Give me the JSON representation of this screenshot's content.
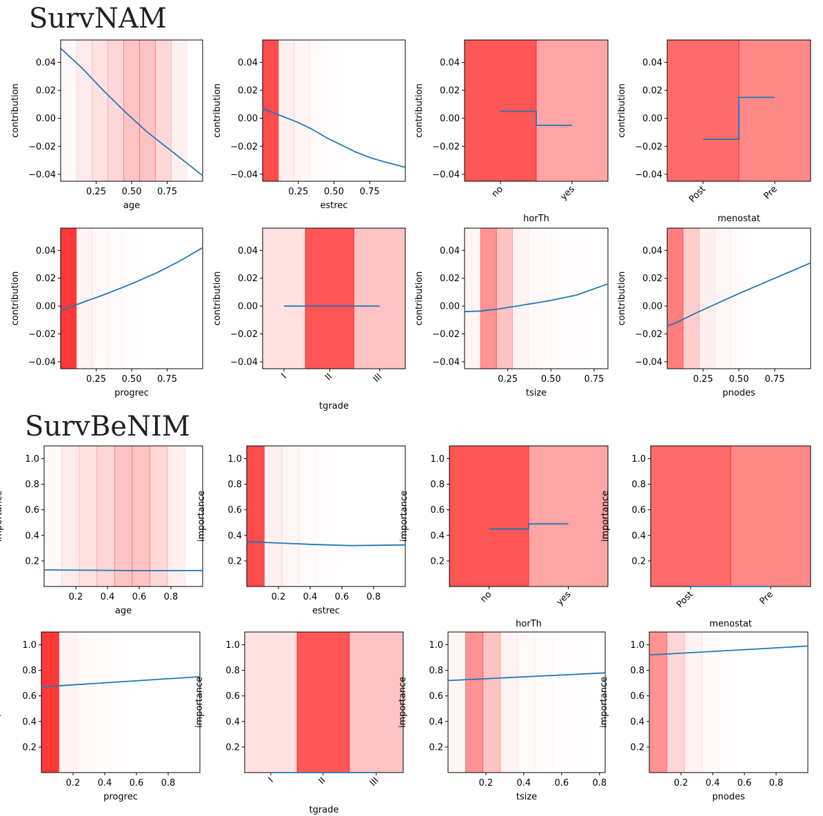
{
  "sections": [
    {
      "title": "SurvNAM",
      "ylabel": "contribution",
      "ylim": [
        -0.045,
        0.056
      ],
      "yticks": [
        -0.04,
        -0.02,
        0.0,
        0.02,
        0.04
      ],
      "ytick_labels": [
        "−0.04",
        "−0.02",
        "0.00",
        "0.02",
        "0.04"
      ],
      "subplots": [
        {
          "feature": "age",
          "kind": "numeric",
          "xlim": [
            0,
            1
          ],
          "xticks": [
            0.25,
            0.5,
            0.75
          ],
          "xtick_labels": [
            "0.25",
            "0.50",
            "0.75"
          ],
          "bands": [
            0.03,
            0.1,
            0.15,
            0.2,
            0.3,
            0.3,
            0.2,
            0.08,
            0.0
          ],
          "line_x": [
            0,
            0.15,
            0.3,
            0.45,
            0.6,
            0.75,
            0.9,
            1.0
          ],
          "line_y": [
            0.05,
            0.036,
            0.02,
            0.005,
            -0.009,
            -0.021,
            -0.033,
            -0.041
          ]
        },
        {
          "feature": "estrec",
          "kind": "numeric",
          "xlim": [
            0,
            1
          ],
          "xticks": [
            0.25,
            0.5,
            0.75
          ],
          "xtick_labels": [
            "0.25",
            "0.50",
            "0.75"
          ],
          "bands": [
            0.9,
            0.08,
            0.05,
            0.02,
            0.01,
            0.0,
            0.0,
            0.0,
            0.0
          ],
          "line_x": [
            0,
            0.1,
            0.2,
            0.25,
            0.35,
            0.45,
            0.55,
            0.65,
            0.75,
            0.85,
            1.0
          ],
          "line_y": [
            0.007,
            0.003,
            -0.001,
            -0.003,
            -0.008,
            -0.014,
            -0.019,
            -0.024,
            -0.028,
            -0.031,
            -0.035
          ]
        },
        {
          "feature": "horTh",
          "kind": "categorical",
          "categories": [
            "no",
            "yes"
          ],
          "widths": [
            0.5,
            0.5
          ],
          "bands": [
            0.85,
            0.45
          ],
          "values": [
            0.005,
            -0.005
          ]
        },
        {
          "feature": "menostat",
          "kind": "categorical",
          "categories": [
            "Post",
            "Pre"
          ],
          "widths": [
            0.5,
            0.5
          ],
          "bands": [
            0.75,
            0.6
          ],
          "values": [
            -0.015,
            0.015
          ]
        },
        {
          "feature": "progrec",
          "kind": "numeric",
          "xlim": [
            0,
            1
          ],
          "xticks": [
            0.25,
            0.5,
            0.75
          ],
          "xtick_labels": [
            "0.25",
            "0.50",
            "0.75"
          ],
          "bands": [
            1.0,
            0.06,
            0.03,
            0.02,
            0.01,
            0.0,
            0.0,
            0.0,
            0.0
          ],
          "line_x": [
            0,
            0.11,
            0.3,
            0.5,
            0.68,
            0.85,
            1.0
          ],
          "line_y": [
            -0.003,
            0.001,
            0.008,
            0.016,
            0.024,
            0.033,
            0.042
          ]
        },
        {
          "feature": "tgrade",
          "kind": "categorical",
          "categories": [
            "I",
            "II",
            "III"
          ],
          "widths": [
            0.3,
            0.34,
            0.36
          ],
          "bands": [
            0.15,
            0.85,
            0.3
          ],
          "values": [
            0.0,
            0.0,
            0.0
          ]
        },
        {
          "feature": "tsize",
          "kind": "numeric",
          "xlim": [
            0,
            0.83
          ],
          "xticks": [
            0.25,
            0.5,
            0.75
          ],
          "xtick_labels": [
            "0.25",
            "0.50",
            "0.75"
          ],
          "bands": [
            0.05,
            0.55,
            0.3,
            0.06,
            0.03,
            0.02,
            0.01,
            0.01,
            0.0
          ],
          "line_x": [
            0,
            0.1,
            0.2,
            0.3,
            0.4,
            0.5,
            0.65,
            0.83
          ],
          "line_y": [
            -0.004,
            -0.0035,
            -0.002,
            0.0,
            0.002,
            0.004,
            0.008,
            0.016
          ]
        },
        {
          "feature": "pnodes",
          "kind": "numeric",
          "xlim": [
            0,
            1
          ],
          "xticks": [
            0.25,
            0.5,
            0.75
          ],
          "xtick_labels": [
            "0.25",
            "0.50",
            "0.75"
          ],
          "bands": [
            0.65,
            0.25,
            0.08,
            0.04,
            0.02,
            0.0,
            0.0,
            0.0,
            0.0
          ],
          "line_x": [
            0,
            0.04,
            0.1,
            0.2,
            0.35,
            0.5,
            0.75,
            1.0
          ],
          "line_y": [
            -0.014,
            -0.013,
            -0.01,
            -0.005,
            0.002,
            0.009,
            0.02,
            0.031
          ]
        }
      ]
    },
    {
      "title": "SurvBeNIM",
      "ylabel": "importance",
      "ylim": [
        0.0,
        1.1
      ],
      "yticks": [
        0.2,
        0.4,
        0.6,
        0.8,
        1.0
      ],
      "ytick_labels": [
        "0.2",
        "0.4",
        "0.6",
        "0.8",
        "1.0"
      ],
      "subplots": [
        {
          "feature": "age",
          "kind": "numeric",
          "xlim": [
            0,
            1
          ],
          "xticks": [
            0.2,
            0.4,
            0.6,
            0.8
          ],
          "xtick_labels": [
            "0.2",
            "0.4",
            "0.6",
            "0.8"
          ],
          "bands": [
            0.03,
            0.1,
            0.15,
            0.2,
            0.3,
            0.3,
            0.2,
            0.08,
            0.0
          ],
          "line_x": [
            0,
            0.3,
            0.6,
            1.0
          ],
          "line_y": [
            0.13,
            0.127,
            0.124,
            0.125
          ]
        },
        {
          "feature": "estrec",
          "kind": "numeric",
          "xlim": [
            0,
            1
          ],
          "xticks": [
            0.2,
            0.4,
            0.6,
            0.8
          ],
          "xtick_labels": [
            "0.2",
            "0.4",
            "0.6",
            "0.8"
          ],
          "bands": [
            0.9,
            0.08,
            0.05,
            0.02,
            0.01,
            0.0,
            0.0,
            0.0,
            0.0
          ],
          "line_x": [
            0,
            0.2,
            0.4,
            0.65,
            1.0
          ],
          "line_y": [
            0.35,
            0.34,
            0.33,
            0.32,
            0.325
          ]
        },
        {
          "feature": "horTh",
          "kind": "categorical",
          "categories": [
            "no",
            "yes"
          ],
          "widths": [
            0.5,
            0.5
          ],
          "bands": [
            0.85,
            0.45
          ],
          "values": [
            0.45,
            0.49
          ]
        },
        {
          "feature": "menostat",
          "kind": "categorical",
          "categories": [
            "Post",
            "Pre"
          ],
          "widths": [
            0.5,
            0.5
          ],
          "bands": [
            0.75,
            0.6
          ],
          "values": [
            0.0,
            0.0
          ]
        },
        {
          "feature": "progrec",
          "kind": "numeric",
          "xlim": [
            0,
            1
          ],
          "xticks": [
            0.2,
            0.4,
            0.6,
            0.8
          ],
          "xtick_labels": [
            "0.2",
            "0.4",
            "0.6",
            "0.8"
          ],
          "bands": [
            1.0,
            0.06,
            0.03,
            0.02,
            0.01,
            0.0,
            0.0,
            0.0,
            0.0
          ],
          "line_x": [
            0,
            1.0
          ],
          "line_y": [
            0.67,
            0.75
          ]
        },
        {
          "feature": "tgrade",
          "kind": "categorical",
          "categories": [
            "I",
            "II",
            "III"
          ],
          "widths": [
            0.33,
            0.33,
            0.34
          ],
          "bands": [
            0.15,
            0.85,
            0.3
          ],
          "values": [
            0.0,
            0.0,
            0.0
          ]
        },
        {
          "feature": "tsize",
          "kind": "numeric",
          "xlim": [
            0,
            0.83
          ],
          "xticks": [
            0.2,
            0.4,
            0.6,
            0.8
          ],
          "xtick_labels": [
            "0.2",
            "0.4",
            "0.6",
            "0.8"
          ],
          "bands": [
            0.05,
            0.55,
            0.3,
            0.06,
            0.03,
            0.02,
            0.01,
            0.01,
            0.0
          ],
          "line_x": [
            0,
            0.83
          ],
          "line_y": [
            0.72,
            0.78
          ]
        },
        {
          "feature": "pnodes",
          "kind": "numeric",
          "xlim": [
            0,
            1
          ],
          "xticks": [
            0.2,
            0.4,
            0.6,
            0.8
          ],
          "xtick_labels": [
            "0.2",
            "0.4",
            "0.6",
            "0.8"
          ],
          "bands": [
            0.55,
            0.2,
            0.06,
            0.03,
            0.01,
            0.0,
            0.0,
            0.0,
            0.0
          ],
          "line_x": [
            0,
            1.0
          ],
          "line_y": [
            0.92,
            0.99
          ]
        }
      ]
    }
  ],
  "chart_data": [
    {
      "type": "line",
      "title": "SurvNAM",
      "ylabel": "contribution",
      "ylim": [
        -0.045,
        0.056
      ],
      "features": [
        "age",
        "estrec",
        "horTh",
        "menostat",
        "progrec",
        "tgrade",
        "tsize",
        "pnodes"
      ],
      "series": [
        {
          "name": "age",
          "x": [
            0,
            0.15,
            0.3,
            0.45,
            0.6,
            0.75,
            0.9,
            1.0
          ],
          "values": [
            0.05,
            0.036,
            0.02,
            0.005,
            -0.009,
            -0.021,
            -0.033,
            -0.041
          ]
        },
        {
          "name": "estrec",
          "x": [
            0,
            0.25,
            0.5,
            0.75,
            1.0
          ],
          "values": [
            0.007,
            -0.003,
            -0.016,
            -0.028,
            -0.035
          ]
        },
        {
          "name": "horTh",
          "categories": [
            "no",
            "yes"
          ],
          "values": [
            0.005,
            -0.005
          ]
        },
        {
          "name": "menostat",
          "categories": [
            "Post",
            "Pre"
          ],
          "values": [
            -0.015,
            0.015
          ]
        },
        {
          "name": "progrec",
          "x": [
            0,
            0.11,
            0.5,
            1.0
          ],
          "values": [
            -0.003,
            0.001,
            0.016,
            0.042
          ]
        },
        {
          "name": "tgrade",
          "categories": [
            "I",
            "II",
            "III"
          ],
          "values": [
            0.0,
            0.0,
            0.0
          ]
        },
        {
          "name": "tsize",
          "x": [
            0,
            0.1,
            0.3,
            0.65,
            0.83
          ],
          "values": [
            -0.004,
            -0.0035,
            0.0,
            0.008,
            0.016
          ]
        },
        {
          "name": "pnodes",
          "x": [
            0,
            0.2,
            0.5,
            0.75,
            1.0
          ],
          "values": [
            -0.014,
            -0.005,
            0.009,
            0.02,
            0.031
          ]
        }
      ]
    },
    {
      "type": "line",
      "title": "SurvBeNIM",
      "ylabel": "importance",
      "ylim": [
        0.0,
        1.1
      ],
      "features": [
        "age",
        "estrec",
        "horTh",
        "menostat",
        "progrec",
        "tgrade",
        "tsize",
        "pnodes"
      ],
      "series": [
        {
          "name": "age",
          "x": [
            0,
            1.0
          ],
          "values": [
            0.13,
            0.125
          ]
        },
        {
          "name": "estrec",
          "x": [
            0,
            0.65,
            1.0
          ],
          "values": [
            0.35,
            0.32,
            0.325
          ]
        },
        {
          "name": "horTh",
          "categories": [
            "no",
            "yes"
          ],
          "values": [
            0.45,
            0.49
          ]
        },
        {
          "name": "menostat",
          "categories": [
            "Post",
            "Pre"
          ],
          "values": [
            0.0,
            0.0
          ]
        },
        {
          "name": "progrec",
          "x": [
            0,
            1.0
          ],
          "values": [
            0.67,
            0.75
          ]
        },
        {
          "name": "tgrade",
          "categories": [
            "I",
            "II",
            "III"
          ],
          "values": [
            0.0,
            0.0,
            0.0
          ]
        },
        {
          "name": "tsize",
          "x": [
            0,
            0.83
          ],
          "values": [
            0.72,
            0.78
          ]
        },
        {
          "name": "pnodes",
          "x": [
            0,
            1.0
          ],
          "values": [
            0.92,
            0.99
          ]
        }
      ]
    }
  ],
  "colors": {
    "line": "#1f77b4",
    "band": "#ff0000",
    "axis": "#000000"
  }
}
